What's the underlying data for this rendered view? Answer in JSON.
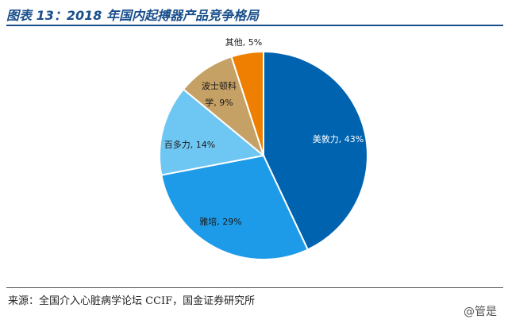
{
  "header": {
    "title": "图表 13：2018 年国内起搏器产品竞争格局"
  },
  "footer": {
    "source": "来源：全国介入心脏病学论坛 CCIF，国金证券研究所",
    "watermark": "@管是"
  },
  "chart_data": {
    "type": "pie",
    "title": "",
    "slices": [
      {
        "label": "美敦力",
        "value": 43,
        "display": "美敦力, 43%",
        "color": "#0063b0"
      },
      {
        "label": "雅培",
        "value": 29,
        "display": "雅培, 29%",
        "color": "#1d9be8"
      },
      {
        "label": "百多力",
        "value": 14,
        "display": "百多力, 14%",
        "color": "#6ec6f3"
      },
      {
        "label": "波士顿科学",
        "value": 9,
        "display": "波士顿科学, 9%",
        "color": "#c5a165"
      },
      {
        "label": "其他",
        "value": 5,
        "display": "其他, 5%",
        "color": "#ee7f00"
      }
    ]
  }
}
